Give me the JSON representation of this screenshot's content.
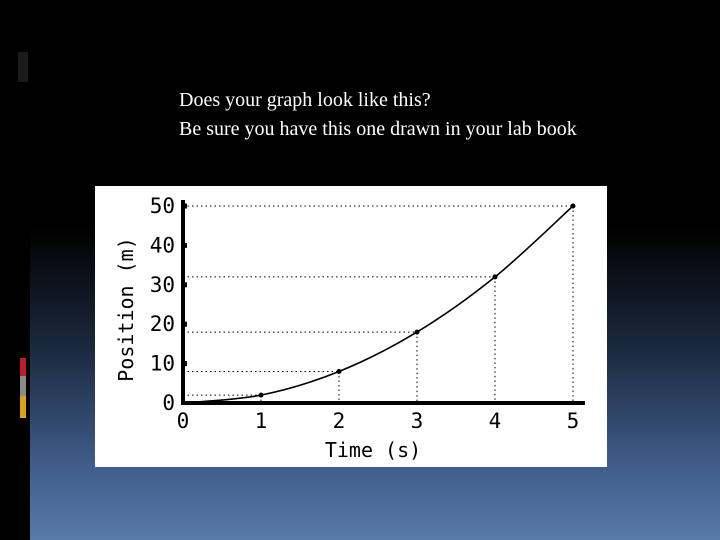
{
  "slide": {
    "line1": "Does your graph look like this?",
    "line2": "Be sure you have this one drawn in your lab book"
  },
  "colors": {
    "background": "#000000",
    "gradient_bottom": "#587aaa",
    "accent_red": "#b8202e",
    "accent_gray": "#8a8a8a",
    "accent_gold": "#d9a21b"
  },
  "chart_data": {
    "type": "line",
    "title": "",
    "xlabel": "Time (s)",
    "ylabel": "Position (m)",
    "xlim": [
      0,
      5
    ],
    "ylim": [
      0,
      50
    ],
    "x_ticks": [
      "0",
      "1",
      "2",
      "3",
      "4",
      "5"
    ],
    "y_ticks": [
      "0",
      "10",
      "20",
      "30",
      "40",
      "50"
    ],
    "series": [
      {
        "x": [
          0,
          1,
          2,
          3,
          4,
          5
        ],
        "y": [
          0,
          2,
          8,
          18,
          32,
          50
        ]
      }
    ],
    "guide_lines": "dotted",
    "grid": false
  }
}
